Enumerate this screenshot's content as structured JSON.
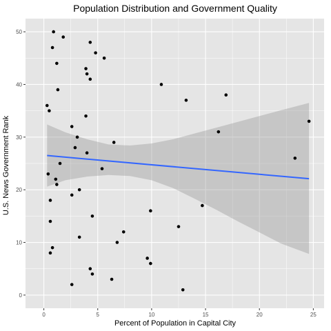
{
  "chart_data": {
    "type": "scatter",
    "title": "Population Distribution and Government Quality",
    "xlabel": "Percent of Population in Capital City",
    "ylabel": "U.S. News Government Rank",
    "xlim": [
      -1.7,
      26.0
    ],
    "ylim": [
      -2.5,
      52.5
    ],
    "x_ticks": [
      0,
      5,
      10,
      15,
      20,
      25
    ],
    "y_ticks": [
      0,
      10,
      20,
      30,
      40,
      50
    ],
    "x_tick_labels": [
      "0",
      "5",
      "10",
      "15",
      "20",
      "25"
    ],
    "y_tick_labels": [
      "0",
      "10",
      "20",
      "30",
      "40",
      "50"
    ],
    "grid": true,
    "legend": "none",
    "colors": {
      "panel": "#e5e5e5",
      "grid": "#ffffff",
      "points": "#000000",
      "trend_line": "#3366ff",
      "confidence_band": "#999999"
    },
    "points": [
      {
        "x": 0.9,
        "y": 50
      },
      {
        "x": 1.8,
        "y": 49
      },
      {
        "x": 4.3,
        "y": 48
      },
      {
        "x": 0.8,
        "y": 47
      },
      {
        "x": 4.8,
        "y": 46
      },
      {
        "x": 5.6,
        "y": 45
      },
      {
        "x": 1.2,
        "y": 44
      },
      {
        "x": 3.9,
        "y": 43
      },
      {
        "x": 4.0,
        "y": 42
      },
      {
        "x": 4.3,
        "y": 41
      },
      {
        "x": 10.9,
        "y": 40
      },
      {
        "x": 1.3,
        "y": 39
      },
      {
        "x": 16.9,
        "y": 38
      },
      {
        "x": 13.2,
        "y": 37
      },
      {
        "x": 0.3,
        "y": 36
      },
      {
        "x": 0.5,
        "y": 35
      },
      {
        "x": 3.9,
        "y": 34
      },
      {
        "x": 24.6,
        "y": 33
      },
      {
        "x": 2.6,
        "y": 32
      },
      {
        "x": 16.2,
        "y": 31
      },
      {
        "x": 3.1,
        "y": 30
      },
      {
        "x": 6.5,
        "y": 29
      },
      {
        "x": 2.9,
        "y": 28
      },
      {
        "x": 4.0,
        "y": 27
      },
      {
        "x": 23.3,
        "y": 26
      },
      {
        "x": 1.5,
        "y": 25
      },
      {
        "x": 5.4,
        "y": 24
      },
      {
        "x": 0.4,
        "y": 23
      },
      {
        "x": 1.1,
        "y": 22
      },
      {
        "x": 1.2,
        "y": 21
      },
      {
        "x": 3.3,
        "y": 20
      },
      {
        "x": 2.6,
        "y": 19
      },
      {
        "x": 0.6,
        "y": 18
      },
      {
        "x": 14.7,
        "y": 17
      },
      {
        "x": 9.9,
        "y": 16
      },
      {
        "x": 4.5,
        "y": 15
      },
      {
        "x": 0.6,
        "y": 14
      },
      {
        "x": 12.5,
        "y": 13
      },
      {
        "x": 7.4,
        "y": 12
      },
      {
        "x": 3.3,
        "y": 11
      },
      {
        "x": 6.8,
        "y": 10
      },
      {
        "x": 0.8,
        "y": 9
      },
      {
        "x": 0.6,
        "y": 8
      },
      {
        "x": 9.6,
        "y": 7
      },
      {
        "x": 9.9,
        "y": 6
      },
      {
        "x": 4.3,
        "y": 5
      },
      {
        "x": 4.5,
        "y": 4
      },
      {
        "x": 6.3,
        "y": 3
      },
      {
        "x": 2.6,
        "y": 2
      },
      {
        "x": 12.9,
        "y": 1
      }
    ],
    "trend_line": {
      "x": [
        0.3,
        24.6
      ],
      "y": [
        26.5,
        22.1
      ]
    },
    "confidence_band": {
      "x": [
        0.3,
        2,
        4,
        6,
        8,
        10,
        12,
        14,
        16,
        18,
        20,
        22,
        24.6
      ],
      "upper": [
        32.4,
        30.9,
        29.6,
        28.6,
        28.4,
        28.8,
        29.6,
        30.7,
        31.8,
        32.9,
        34.0,
        35.1,
        36.5
      ],
      "lower": [
        20.6,
        21.8,
        22.5,
        22.8,
        22.6,
        21.8,
        20.3,
        18.3,
        16.2,
        14.0,
        11.9,
        9.8,
        7.8
      ]
    }
  }
}
